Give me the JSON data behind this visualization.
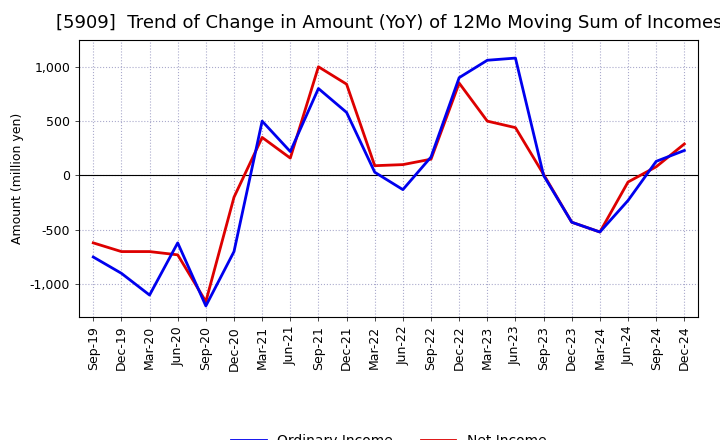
{
  "title": "[5909]  Trend of Change in Amount (YoY) of 12Mo Moving Sum of Incomes",
  "ylabel": "Amount (million yen)",
  "x_labels": [
    "Sep-19",
    "Dec-19",
    "Mar-20",
    "Jun-20",
    "Sep-20",
    "Dec-20",
    "Mar-21",
    "Jun-21",
    "Sep-21",
    "Dec-21",
    "Mar-22",
    "Jun-22",
    "Sep-22",
    "Dec-22",
    "Mar-23",
    "Jun-23",
    "Sep-23",
    "Dec-23",
    "Mar-24",
    "Jun-24",
    "Sep-24",
    "Dec-24"
  ],
  "ordinary_income": [
    -750,
    -900,
    -1100,
    -620,
    -1200,
    -700,
    500,
    220,
    800,
    580,
    30,
    -130,
    170,
    900,
    1060,
    1080,
    0,
    -430,
    -520,
    -230,
    130,
    230
  ],
  "net_income": [
    -620,
    -700,
    -700,
    -730,
    -1160,
    -200,
    350,
    160,
    1000,
    840,
    90,
    100,
    150,
    850,
    500,
    440,
    10,
    -430,
    -520,
    -60,
    80,
    290
  ],
  "ordinary_color": "#0000ee",
  "net_color": "#dd0000",
  "ylim": [
    -1300,
    1250
  ],
  "yticks": [
    -1000,
    -500,
    0,
    500,
    1000
  ],
  "bg_color": "#ffffff",
  "grid_color": "#aaaacc",
  "linewidth": 2.0,
  "title_fontsize": 13,
  "legend_fontsize": 10,
  "axis_fontsize": 9
}
